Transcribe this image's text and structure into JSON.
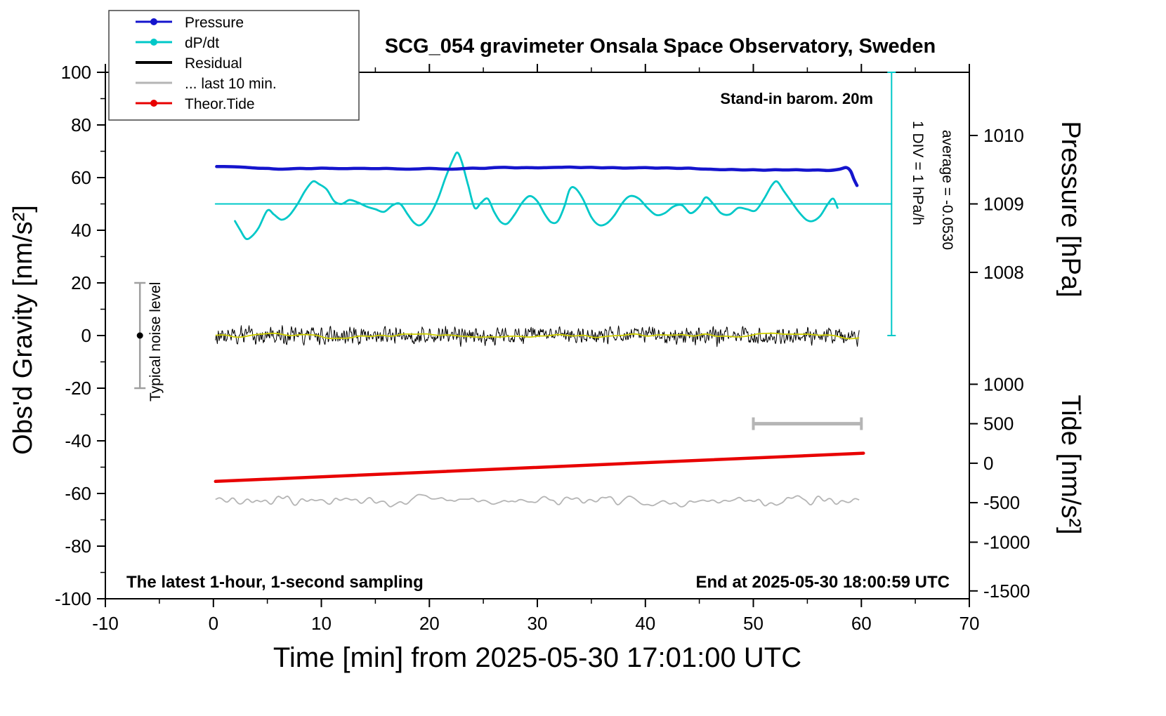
{
  "title": "SCG_054 gravimeter Onsala Space Observatory, Sweden",
  "annotations": {
    "barometer": "Stand-in barom. 20m",
    "div_scale": "1 DIV = 1 hPa/h",
    "average": "average = -0.0530",
    "noise_level": "Typical noise level",
    "sampling": "The latest 1-hour, 1-second sampling",
    "end_time": "End at 2025-05-30 18:00:59 UTC"
  },
  "legend": {
    "items": [
      {
        "label": "Pressure",
        "color": "#1515cd",
        "marker": true
      },
      {
        "label": "dP/dt",
        "color": "#00c8c8",
        "marker": true
      },
      {
        "label": "Residual",
        "color": "#000000",
        "marker": false
      },
      {
        "label": "... last 10 min.",
        "color": "#b5b5b5",
        "marker": false
      },
      {
        "label": "Theor.Tide",
        "color": "#e80000",
        "marker": true
      }
    ]
  },
  "axes": {
    "x": {
      "label": "Time [min] from 2025-05-30 17:01:00 UTC",
      "min": -10,
      "max": 70,
      "major_ticks": [
        -10,
        0,
        10,
        20,
        30,
        40,
        50,
        60,
        70
      ],
      "minor_step": 5
    },
    "y_left": {
      "label": "Obs'd Gravity [nm/s²]",
      "min": -100,
      "max": 100,
      "major_ticks": [
        -100,
        -80,
        -60,
        -40,
        -20,
        0,
        20,
        40,
        60,
        80,
        100
      ],
      "minor_step": 10
    },
    "y_pressure": {
      "label": "Pressure [hPa]",
      "ticks": [
        {
          "label": "1010",
          "g": 76
        },
        {
          "label": "1009",
          "g": 50
        },
        {
          "label": "1008",
          "g": 24
        }
      ]
    },
    "y_tide": {
      "label": "Tide [nm/s²]",
      "ticks": [
        {
          "label": "1000",
          "g": -18.5
        },
        {
          "label": "500",
          "g": -33.5
        },
        {
          "label": "0",
          "g": -48.5
        },
        {
          "label": "-500",
          "g": -63.5
        },
        {
          "label": "-1000",
          "g": -78.5
        },
        {
          "label": "-1500",
          "g": -97
        }
      ]
    }
  },
  "chart_data": {
    "type": "line",
    "title": "SCG_054 gravimeter Onsala Space Observatory, Sweden",
    "xlabel": "Time [min] from 2025-05-30 17:01:00 UTC",
    "ylabel_left": "Obs'd Gravity [nm/s²]",
    "ylabel_right_pressure": "Pressure [hPa]",
    "ylabel_right_tide": "Tide [nm/s²]",
    "x_range": [
      -10,
      70
    ],
    "y_range": [
      -100,
      100
    ],
    "series": [
      {
        "name": "pressure",
        "color": "#1515cd",
        "width": 4.5,
        "smooth": true,
        "x": [
          0.3,
          1,
          2,
          3,
          4,
          5,
          6,
          7,
          8,
          9,
          10,
          11,
          12,
          13,
          14,
          15,
          16,
          17,
          18,
          19,
          20,
          21,
          22,
          23,
          24,
          25,
          26,
          27,
          28,
          29,
          30,
          31,
          32,
          33,
          34,
          35,
          36,
          37,
          38,
          39,
          40,
          41,
          42,
          43,
          44,
          45,
          46,
          47,
          48,
          49,
          50,
          51,
          52,
          53,
          54,
          55,
          56,
          57,
          58,
          58.6,
          59,
          59.3,
          59.6
        ],
        "y": [
          64.2,
          64.2,
          64.1,
          63.9,
          63.6,
          63.5,
          63.2,
          63.3,
          63.5,
          63.4,
          63.6,
          63.5,
          63.4,
          63.5,
          63.5,
          63.4,
          63.5,
          63.3,
          63.2,
          63.3,
          63.5,
          63.3,
          63.2,
          63.4,
          63.6,
          63.5,
          63.8,
          63.9,
          63.7,
          63.8,
          63.7,
          63.8,
          63.9,
          64.0,
          63.8,
          63.9,
          63.7,
          63.8,
          63.6,
          63.7,
          63.8,
          63.6,
          63.7,
          63.5,
          63.6,
          63.3,
          63.2,
          63.0,
          63.1,
          62.9,
          63.0,
          62.8,
          63.0,
          62.9,
          63.0,
          62.8,
          62.9,
          62.7,
          63.2,
          63.8,
          62.5,
          59.5,
          57.0
        ]
      },
      {
        "name": "dpdt",
        "color": "#00c8c8",
        "width": 2.8,
        "smooth": true,
        "x": [
          2.0,
          2.5,
          3.0,
          3.5,
          4.2,
          5.0,
          5.6,
          6.3,
          7.0,
          7.8,
          8.5,
          9.2,
          9.8,
          10.5,
          11.2,
          11.9,
          12.6,
          13.4,
          14.2,
          15.0,
          15.8,
          16.6,
          17.3,
          18.0,
          18.6,
          19.2,
          20.0,
          20.8,
          21.5,
          22.2,
          22.6,
          23.0,
          23.6,
          24.2,
          24.8,
          25.4,
          26.0,
          26.6,
          27.2,
          27.9,
          28.6,
          29.3,
          30.0,
          30.7,
          31.3,
          31.9,
          32.5,
          33.0,
          33.5,
          34.2,
          35.0,
          35.7,
          36.4,
          37.1,
          37.9,
          38.6,
          39.4,
          40.2,
          41.0,
          41.8,
          42.6,
          43.4,
          44.2,
          45.0,
          45.6,
          46.3,
          47.0,
          47.8,
          48.6,
          49.4,
          50.2,
          51.0,
          51.7,
          52.2,
          52.8,
          53.5,
          54.2,
          54.9,
          55.5,
          56.2,
          56.9,
          57.4,
          57.8
        ],
        "y": [
          43.5,
          40.0,
          36.8,
          37.5,
          41.0,
          47.5,
          46.0,
          44.0,
          45.5,
          50.0,
          55.0,
          58.5,
          57.5,
          55.5,
          51.0,
          50.0,
          51.5,
          50.5,
          49.0,
          48.0,
          47.0,
          49.5,
          50.0,
          46.0,
          42.8,
          42.0,
          45.5,
          52.0,
          60.0,
          67.0,
          69.5,
          66.0,
          57.0,
          48.5,
          50.5,
          52.0,
          47.0,
          43.2,
          42.5,
          46.0,
          50.5,
          53.0,
          51.0,
          46.0,
          43.0,
          43.5,
          49.0,
          55.5,
          56.0,
          52.0,
          45.0,
          42.0,
          42.5,
          45.5,
          50.5,
          53.0,
          52.0,
          48.5,
          45.8,
          46.5,
          49.0,
          49.5,
          46.5,
          49.0,
          52.5,
          50.0,
          46.5,
          46.0,
          48.5,
          48.0,
          47.5,
          52.0,
          57.0,
          58.5,
          55.0,
          51.0,
          47.0,
          44.0,
          43.5,
          45.5,
          50.0,
          52.0,
          48.5
        ]
      },
      {
        "name": "dpdt-zero-line",
        "color": "#00c8c8",
        "width": 2,
        "smooth": false,
        "x": [
          0.2,
          62.8
        ],
        "y": [
          50,
          50
        ]
      },
      {
        "name": "theor-tide",
        "color": "#e80000",
        "width": 4.5,
        "smooth": false,
        "x": [
          0.2,
          60.2
        ],
        "y": [
          -55.4,
          -44.7
        ]
      }
    ],
    "noise_series": [
      {
        "name": "residual",
        "color": "#000000",
        "width": 1,
        "x_range": [
          0.2,
          59.8
        ],
        "center": 0,
        "amplitude": 4.2,
        "points": 1400,
        "seed": 13,
        "smooth_passes": 1
      },
      {
        "name": "residual-mean",
        "color": "#cfcf00",
        "width": 1.8,
        "x_range": [
          0.2,
          59.8
        ],
        "center": 0.2,
        "amplitude": 1.4,
        "points": 260,
        "seed": 5,
        "smooth_passes": 14
      },
      {
        "name": "residual-last-10-min",
        "color": "#b5b5b5",
        "width": 1.8,
        "x_range": [
          0.2,
          59.8
        ],
        "center": -62.8,
        "amplitude": 2.4,
        "points": 430,
        "seed": 29,
        "smooth_passes": 6
      }
    ],
    "noise_level_bar": {
      "x": -6.8,
      "y_top": 20,
      "y_bottom": -20,
      "dot_y": 0,
      "color": "#a0a0a0"
    },
    "scale_bar": {
      "x_start": 50,
      "x_end": 60,
      "y": -33.5,
      "color": "#b5b5b5"
    },
    "div_line": {
      "x": 62.8,
      "y_top": 100,
      "y_bottom": 0,
      "color": "#00c8c8"
    }
  }
}
